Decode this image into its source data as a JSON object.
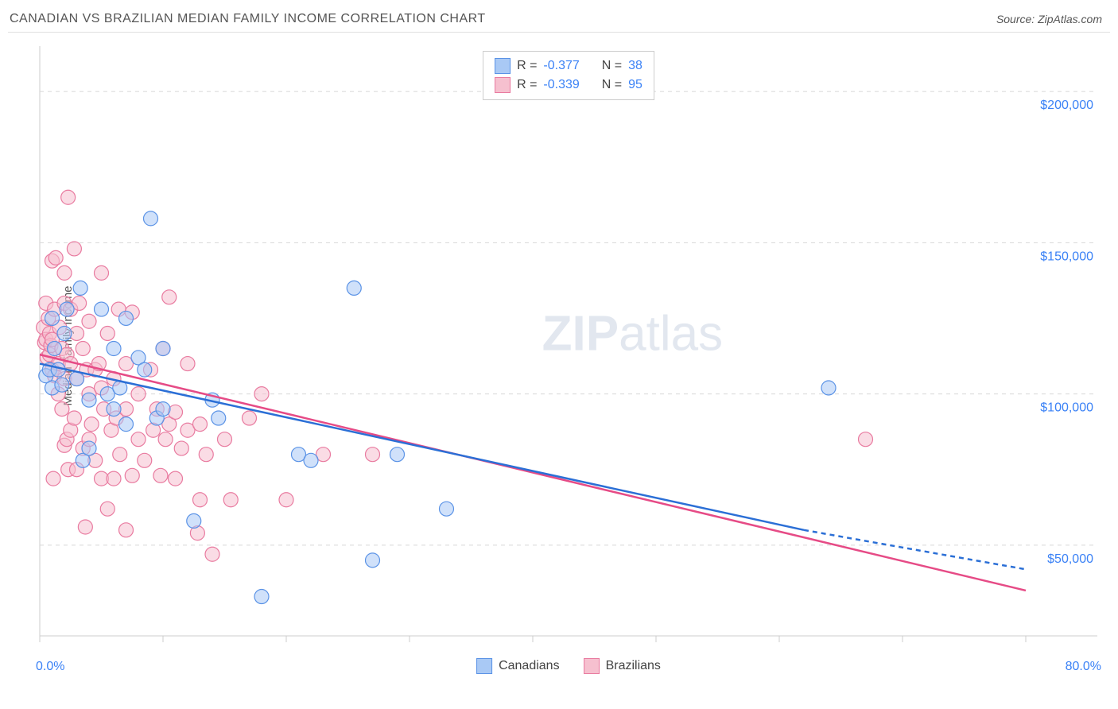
{
  "header": {
    "title": "CANADIAN VS BRAZILIAN MEDIAN FAMILY INCOME CORRELATION CHART",
    "source": "Source: ZipAtlas.com"
  },
  "watermark": {
    "bold": "ZIP",
    "light": "atlas"
  },
  "chart": {
    "type": "scatter",
    "background_color": "#ffffff",
    "grid_color": "#d8d8d8",
    "axis_color": "#cccccc",
    "tick_color": "#cccccc",
    "x_axis": {
      "min": 0.0,
      "max": 80.0,
      "label_min": "0.0%",
      "label_max": "80.0%",
      "label_color": "#3b82f6",
      "label_fontsize": 16,
      "ticks": [
        0,
        10,
        20,
        30,
        40,
        50,
        60,
        70,
        80
      ]
    },
    "y_axis": {
      "title": "Median Family Income",
      "title_fontsize": 15,
      "title_color": "#555555",
      "min": 20000,
      "max": 215000,
      "gridlines": [
        50000,
        100000,
        150000,
        200000
      ],
      "grid_labels": [
        "$50,000",
        "$100,000",
        "$150,000",
        "$200,000"
      ],
      "label_color": "#3b82f6",
      "label_fontsize": 16
    },
    "series": [
      {
        "name": "Canadians",
        "marker_fill": "#a9c9f5",
        "marker_stroke": "#5b93e6",
        "marker_radius": 9,
        "marker_opacity": 0.55,
        "line_color": "#2b6fd6",
        "line_width": 2.5,
        "regression": {
          "x1": 0,
          "y1": 110000,
          "x2_solid": 62,
          "y2_solid": 55000,
          "x2_dash": 80,
          "y2_dash": 42000
        },
        "stats": {
          "R": "-0.377",
          "N": "38"
        },
        "points": [
          [
            0.5,
            106000
          ],
          [
            0.8,
            108000
          ],
          [
            1.0,
            125000
          ],
          [
            1.0,
            102000
          ],
          [
            1.2,
            115000
          ],
          [
            1.5,
            108000
          ],
          [
            1.8,
            103000
          ],
          [
            2.0,
            120000
          ],
          [
            2.2,
            128000
          ],
          [
            3.0,
            105000
          ],
          [
            3.3,
            135000
          ],
          [
            3.5,
            78000
          ],
          [
            4.0,
            98000
          ],
          [
            4.0,
            82000
          ],
          [
            5.0,
            128000
          ],
          [
            5.5,
            100000
          ],
          [
            6.0,
            115000
          ],
          [
            6.0,
            95000
          ],
          [
            6.5,
            102000
          ],
          [
            7.0,
            125000
          ],
          [
            7.0,
            90000
          ],
          [
            8.0,
            112000
          ],
          [
            8.5,
            108000
          ],
          [
            9.0,
            158000
          ],
          [
            9.5,
            92000
          ],
          [
            10.0,
            95000
          ],
          [
            10.0,
            115000
          ],
          [
            12.5,
            58000
          ],
          [
            14.0,
            98000
          ],
          [
            14.5,
            92000
          ],
          [
            18.0,
            33000
          ],
          [
            21.0,
            80000
          ],
          [
            22.0,
            78000
          ],
          [
            25.5,
            135000
          ],
          [
            27.0,
            45000
          ],
          [
            29.0,
            80000
          ],
          [
            33.0,
            62000
          ],
          [
            64.0,
            102000
          ]
        ]
      },
      {
        "name": "Brazilians",
        "marker_fill": "#f6c0cf",
        "marker_stroke": "#e97ba0",
        "marker_radius": 9,
        "marker_opacity": 0.55,
        "line_color": "#e64b86",
        "line_width": 2.5,
        "regression": {
          "x1": 0,
          "y1": 113000,
          "x2_solid": 80,
          "y2_solid": 35000,
          "x2_dash": 80,
          "y2_dash": 35000
        },
        "stats": {
          "R": "-0.339",
          "N": "95"
        },
        "points": [
          [
            0.3,
            122000
          ],
          [
            0.4,
            117000
          ],
          [
            0.5,
            118000
          ],
          [
            0.5,
            130000
          ],
          [
            0.6,
            112000
          ],
          [
            0.7,
            125000
          ],
          [
            0.8,
            120000
          ],
          [
            0.8,
            113000
          ],
          [
            0.9,
            116000
          ],
          [
            1.0,
            144000
          ],
          [
            1.0,
            118000
          ],
          [
            1.0,
            108000
          ],
          [
            1.1,
            72000
          ],
          [
            1.2,
            128000
          ],
          [
            1.2,
            106000
          ],
          [
            1.3,
            145000
          ],
          [
            1.5,
            110000
          ],
          [
            1.5,
            100000
          ],
          [
            1.6,
            122000
          ],
          [
            1.8,
            95000
          ],
          [
            1.8,
            115000
          ],
          [
            2.0,
            105000
          ],
          [
            2.0,
            130000
          ],
          [
            2.0,
            140000
          ],
          [
            2.0,
            83000
          ],
          [
            2.2,
            85000
          ],
          [
            2.2,
            113000
          ],
          [
            2.3,
            165000
          ],
          [
            2.3,
            75000
          ],
          [
            2.5,
            110000
          ],
          [
            2.5,
            88000
          ],
          [
            2.5,
            128000
          ],
          [
            2.8,
            92000
          ],
          [
            2.8,
            148000
          ],
          [
            3.0,
            105000
          ],
          [
            3.0,
            75000
          ],
          [
            3.0,
            120000
          ],
          [
            3.2,
            130000
          ],
          [
            3.5,
            115000
          ],
          [
            3.5,
            82000
          ],
          [
            3.7,
            56000
          ],
          [
            3.8,
            108000
          ],
          [
            4.0,
            85000
          ],
          [
            4.0,
            100000
          ],
          [
            4.0,
            124000
          ],
          [
            4.2,
            90000
          ],
          [
            4.5,
            108000
          ],
          [
            4.5,
            78000
          ],
          [
            4.8,
            110000
          ],
          [
            5.0,
            140000
          ],
          [
            5.0,
            72000
          ],
          [
            5.0,
            102000
          ],
          [
            5.2,
            95000
          ],
          [
            5.5,
            120000
          ],
          [
            5.5,
            62000
          ],
          [
            5.8,
            88000
          ],
          [
            6.0,
            105000
          ],
          [
            6.0,
            72000
          ],
          [
            6.2,
            92000
          ],
          [
            6.4,
            128000
          ],
          [
            6.5,
            80000
          ],
          [
            7.0,
            95000
          ],
          [
            7.0,
            110000
          ],
          [
            7.0,
            55000
          ],
          [
            7.5,
            73000
          ],
          [
            7.5,
            127000
          ],
          [
            8.0,
            85000
          ],
          [
            8.0,
            100000
          ],
          [
            8.5,
            78000
          ],
          [
            9.0,
            108000
          ],
          [
            9.2,
            88000
          ],
          [
            9.5,
            95000
          ],
          [
            9.8,
            73000
          ],
          [
            10.0,
            115000
          ],
          [
            10.2,
            85000
          ],
          [
            10.5,
            90000
          ],
          [
            10.5,
            132000
          ],
          [
            11.0,
            72000
          ],
          [
            11.0,
            94000
          ],
          [
            11.5,
            82000
          ],
          [
            12.0,
            88000
          ],
          [
            12.0,
            110000
          ],
          [
            12.8,
            54000
          ],
          [
            13.0,
            90000
          ],
          [
            13.0,
            65000
          ],
          [
            13.5,
            80000
          ],
          [
            14.0,
            47000
          ],
          [
            15.0,
            85000
          ],
          [
            15.5,
            65000
          ],
          [
            17.0,
            92000
          ],
          [
            18.0,
            100000
          ],
          [
            20.0,
            65000
          ],
          [
            23.0,
            80000
          ],
          [
            27.0,
            80000
          ],
          [
            67.0,
            85000
          ]
        ]
      }
    ],
    "bottom_legend": [
      {
        "label": "Canadians",
        "fill": "#a9c9f5",
        "stroke": "#5b93e6"
      },
      {
        "label": "Brazilians",
        "fill": "#f6c0cf",
        "stroke": "#e97ba0"
      }
    ]
  }
}
